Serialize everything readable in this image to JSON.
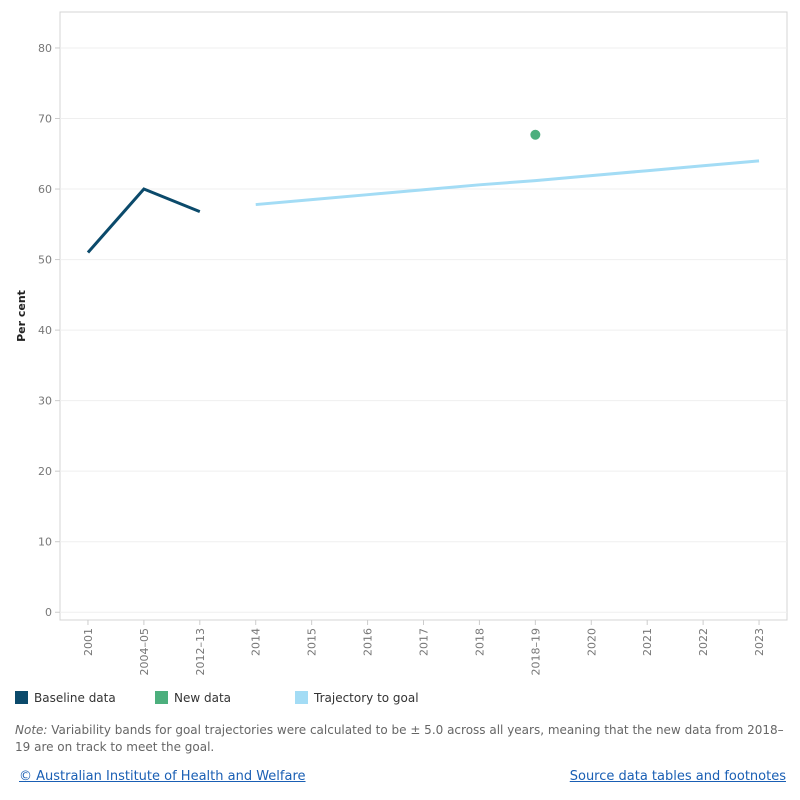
{
  "chart_data": {
    "type": "line",
    "y_label": "Per cent",
    "categories": [
      "2001",
      "2004–05",
      "2012–13",
      "2014",
      "2015",
      "2016",
      "2017",
      "2018",
      "2018–19",
      "2020",
      "2021",
      "2022",
      "2023"
    ],
    "series": [
      {
        "name": "Baseline data",
        "color": "#0b4a6b",
        "style": "line",
        "values": [
          51,
          60,
          56.8,
          null,
          null,
          null,
          null,
          null,
          null,
          null,
          null,
          null,
          null
        ]
      },
      {
        "name": "New data",
        "color": "#4caf7d",
        "style": "point",
        "values": [
          null,
          null,
          null,
          null,
          null,
          null,
          null,
          null,
          67.7,
          null,
          null,
          null,
          null
        ]
      },
      {
        "name": "Trajectory to goal",
        "color": "#a3dcf5",
        "style": "line",
        "values": [
          null,
          null,
          null,
          57.8,
          58.5,
          59.2,
          59.9,
          60.6,
          61.2,
          61.9,
          62.6,
          63.3,
          64.0
        ]
      }
    ],
    "ylim": [
      -1.1,
      85.1
    ],
    "yticks": [
      0,
      10,
      20,
      30,
      40,
      50,
      60,
      70,
      80
    ],
    "grid": true,
    "note_label": "Note:",
    "note_text": "Variability bands for goal trajectories were calculated to be ± 5.0 across all years, meaning that the new data from 2018–19 are on track to meet the goal.",
    "footer_left": "© Australian Institute of Health and Welfare",
    "footer_right": "Source data tables and footnotes"
  }
}
